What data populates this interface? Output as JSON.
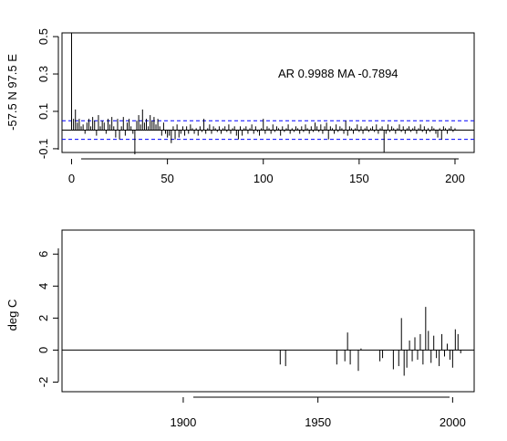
{
  "chart_data": [
    {
      "type": "bar",
      "ylabel": "-57.5 N 97.5 E",
      "annotation": "AR 0.9988  MA -0.7894",
      "xlim": [
        -5,
        210
      ],
      "ylim": [
        -0.12,
        0.52
      ],
      "xticks": [
        0,
        50,
        100,
        150,
        200
      ],
      "yticks": [
        -0.1,
        0.1,
        0.3,
        0.5
      ],
      "confidence_band": 0.05,
      "band_color": "#0000ff",
      "lags": [
        0,
        1,
        2,
        3,
        4,
        5,
        6,
        7,
        8,
        9,
        10,
        11,
        12,
        13,
        14,
        15,
        16,
        17,
        18,
        19,
        20,
        21,
        22,
        23,
        24,
        25,
        26,
        27,
        28,
        29,
        30,
        31,
        32,
        33,
        34,
        35,
        36,
        37,
        38,
        39,
        40,
        41,
        42,
        43,
        44,
        45,
        46,
        47,
        48,
        49,
        50,
        51,
        52,
        53,
        54,
        55,
        56,
        57,
        58,
        59,
        60,
        61,
        62,
        63,
        64,
        65,
        66,
        67,
        68,
        69,
        70,
        71,
        72,
        73,
        74,
        75,
        76,
        77,
        78,
        79,
        80,
        81,
        82,
        83,
        84,
        85,
        86,
        87,
        88,
        89,
        90,
        91,
        92,
        93,
        94,
        95,
        96,
        97,
        98,
        99,
        100,
        101,
        102,
        103,
        104,
        105,
        106,
        107,
        108,
        109,
        110,
        111,
        112,
        113,
        114,
        115,
        116,
        117,
        118,
        119,
        120,
        121,
        122,
        123,
        124,
        125,
        126,
        127,
        128,
        129,
        130,
        131,
        132,
        133,
        134,
        135,
        136,
        137,
        138,
        139,
        140,
        141,
        142,
        143,
        144,
        145,
        146,
        147,
        148,
        149,
        150,
        151,
        152,
        153,
        154,
        155,
        156,
        157,
        158,
        159,
        160,
        161,
        162,
        163,
        164,
        165,
        166,
        167,
        168,
        169,
        170,
        171,
        172,
        173,
        174,
        175,
        176,
        177,
        178,
        179,
        180,
        181,
        182,
        183,
        184,
        185,
        186,
        187,
        188,
        189,
        190,
        191,
        192,
        193,
        194,
        195,
        196,
        197,
        198,
        199,
        200
      ],
      "values": [
        0.52,
        0.06,
        0.11,
        0.04,
        0.06,
        0.02,
        0.03,
        -0.02,
        0.04,
        0.06,
        0.02,
        0.07,
        0.05,
        -0.03,
        0.08,
        0.02,
        0.05,
        0.04,
        -0.02,
        0.06,
        0.03,
        0.07,
        0.02,
        -0.04,
        0.06,
        -0.05,
        0.02,
        0.07,
        -0.03,
        0.04,
        0.06,
        0.02,
        -0.02,
        -0.13,
        0.05,
        0.08,
        0.03,
        0.11,
        0.04,
        0.06,
        0.02,
        0.08,
        0.05,
        0.07,
        0.03,
        0.06,
        0.02,
        -0.03,
        0.04,
        -0.02,
        -0.04,
        -0.03,
        -0.07,
        0.02,
        -0.05,
        0.03,
        -0.04,
        -0.02,
        0.02,
        -0.03,
        0.02,
        -0.02,
        0.03,
        0.01,
        -0.02,
        0.01,
        -0.03,
        0.02,
        -0.01,
        0.06,
        -0.02,
        0.01,
        0.03,
        -0.02,
        0.02,
        0.01,
        -0.01,
        0.02,
        -0.02,
        0.01,
        0.02,
        -0.01,
        0.03,
        -0.02,
        0.01,
        0.02,
        -0.03,
        -0.05,
        0.02,
        -0.03,
        0.01,
        0.02,
        -0.02,
        0.01,
        0.03,
        -0.02,
        0.02,
        -0.01,
        -0.03,
        0.01,
        0.06,
        -0.02,
        0.02,
        0.01,
        -0.02,
        0.03,
        -0.01,
        0.02,
        0.01,
        -0.03,
        0.02,
        -0.01,
        0.01,
        0.03,
        -0.02,
        0.01,
        -0.01,
        0.02,
        0.01,
        -0.02,
        0.02,
        -0.01,
        0.03,
        0.01,
        -0.02,
        0.02,
        -0.01,
        0.04,
        0.02,
        -0.01,
        0.03,
        -0.02,
        0.02,
        0.04,
        -0.05,
        0.02,
        0.01,
        -0.02,
        0.03,
        -0.01,
        0.02,
        0.01,
        -0.02,
        0.05,
        -0.03,
        0.02,
        0.01,
        -0.02,
        0.01,
        0.03,
        -0.01,
        0.02,
        -0.02,
        0.01,
        0.02,
        -0.01,
        0.01,
        0.02,
        -0.01,
        0.03,
        -0.02,
        0.01,
        0.02,
        -0.12,
        -0.02,
        0.03,
        -0.01,
        0.02,
        0.01,
        -0.02,
        0.01,
        0.03,
        -0.01,
        0.02,
        -0.02,
        0.01,
        0.02,
        -0.01,
        0.01,
        0.02,
        -0.02,
        0.01,
        0.03,
        -0.01,
        0.02,
        -0.02,
        0.01,
        -0.01,
        0.02,
        0.01,
        -0.02,
        -0.04,
        0.01,
        -0.05,
        0.02,
        0.01,
        -0.02,
        0.01,
        0.02,
        -0.01,
        0.01
      ]
    },
    {
      "type": "bar",
      "ylabel": "deg C",
      "xlim": [
        1855,
        2008
      ],
      "ylim": [
        -2.6,
        7.5
      ],
      "xticks": [
        1900,
        1950,
        2000
      ],
      "yticks": [
        -2,
        0,
        2,
        4,
        6
      ],
      "x": [
        1936,
        1938,
        1957,
        1960,
        1961,
        1962,
        1965,
        1966,
        1973,
        1974,
        1978,
        1980,
        1981,
        1982,
        1983,
        1984,
        1985,
        1986,
        1987,
        1988,
        1989,
        1990,
        1991,
        1992,
        1993,
        1994,
        1995,
        1996,
        1997,
        1998,
        1999,
        2000,
        2001,
        2002,
        2003
      ],
      "values": [
        -0.9,
        -1.0,
        -0.9,
        -0.7,
        1.1,
        -0.9,
        -1.3,
        0.1,
        -0.7,
        -0.5,
        -1.2,
        -1.0,
        2.0,
        -1.6,
        -1.1,
        0.6,
        -0.7,
        0.8,
        -0.6,
        1.0,
        -0.9,
        2.7,
        1.2,
        -0.8,
        0.9,
        -0.5,
        -1.0,
        1.0,
        -0.4,
        0.4,
        -0.6,
        -1.1,
        1.3,
        1.0,
        -0.2
      ]
    }
  ]
}
